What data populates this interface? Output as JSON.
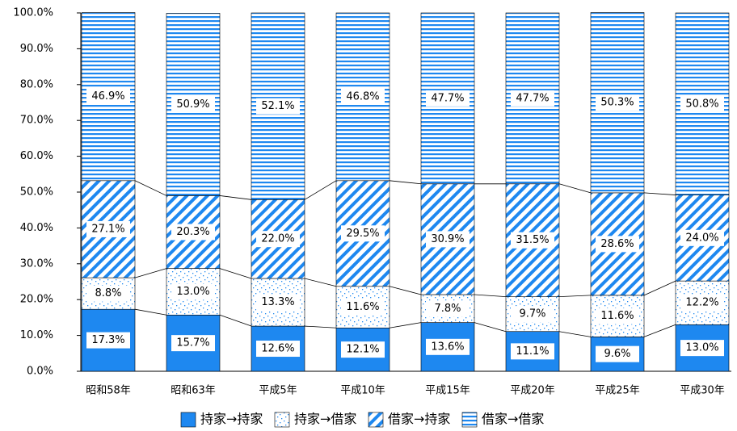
{
  "chart_data": {
    "type": "stacked_bar",
    "categories": [
      "昭和58年",
      "昭和63年",
      "平成5年",
      "平成10年",
      "平成15年",
      "平成20年",
      "平成25年",
      "平成30年"
    ],
    "series": [
      {
        "name": "持家→持家",
        "color": "#1e88f0",
        "pattern": "solid",
        "values": [
          17.3,
          15.7,
          12.6,
          12.1,
          13.6,
          11.1,
          9.6,
          13
        ],
        "value_labels": [
          "17.3%",
          "15.7%",
          "12.6%",
          "12.1%",
          "13.6%",
          "11.1%",
          "9.6%",
          "13.0%"
        ]
      },
      {
        "name": "持家→借家",
        "color": "#1e88f0",
        "pattern": "dots",
        "values": [
          8.8,
          13,
          13.3,
          11.6,
          7.8,
          9.7,
          11.6,
          12.2
        ],
        "value_labels": [
          "8.8%",
          "13.0%",
          "13.3%",
          "11.6%",
          "7.8%",
          "9.7%",
          "11.6%",
          "12.2%"
        ]
      },
      {
        "name": "借家→持家",
        "color": "#1e88f0",
        "pattern": "diagonal",
        "values": [
          27.1,
          20.3,
          22,
          29.5,
          30.9,
          31.5,
          28.6,
          24
        ],
        "value_labels": [
          "27.1%",
          "20.3%",
          "22.0%",
          "29.5%",
          "30.9%",
          "31.5%",
          "28.6%",
          "24.0%"
        ]
      },
      {
        "name": "借家→借家",
        "color": "#1e88f0",
        "pattern": "horizontal",
        "values": [
          46.9,
          50.9,
          52.1,
          46.8,
          47.7,
          47.7,
          50.3,
          50.8
        ],
        "value_labels": [
          "46.9%",
          "50.9%",
          "52.1%",
          "46.8%",
          "47.7%",
          "47.7%",
          "50.3%",
          "50.8%"
        ]
      }
    ],
    "ylim": [
      0,
      100
    ],
    "yticks": [
      {
        "value": 0,
        "label": "0.0%"
      },
      {
        "value": 10,
        "label": "10.0%"
      },
      {
        "value": 20,
        "label": "20.0%"
      },
      {
        "value": 30,
        "label": "30.0%"
      },
      {
        "value": 40,
        "label": "40.0%"
      },
      {
        "value": 50,
        "label": "50.0%"
      },
      {
        "value": 60,
        "label": "60.0%"
      },
      {
        "value": 70,
        "label": "70.0%"
      },
      {
        "value": 80,
        "label": "80.0%"
      },
      {
        "value": 90,
        "label": "90.0%"
      },
      {
        "value": 100,
        "label": "100.0%"
      }
    ],
    "legend": "bottom"
  }
}
